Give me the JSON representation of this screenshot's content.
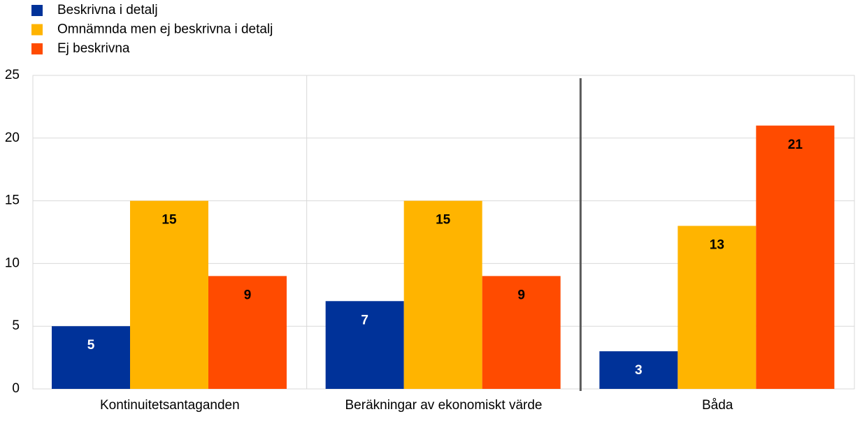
{
  "chart_data": {
    "type": "bar",
    "categories": [
      "Kontinuitetsantaganden",
      "Beräkningar av ekonomiskt värde",
      "Båda"
    ],
    "series": [
      {
        "name": "Beskrivna i detalj",
        "color": "#003299",
        "values": [
          5,
          7,
          3
        ]
      },
      {
        "name": "Omnämnda men ej beskrivna i detalj",
        "color": "#ffb400",
        "values": [
          15,
          15,
          13
        ]
      },
      {
        "name": "Ej beskrivna",
        "color": "#ff4b00",
        "values": [
          9,
          9,
          21
        ]
      }
    ],
    "ylim": [
      0,
      25
    ],
    "yticks": [
      0,
      5,
      10,
      15,
      20,
      25
    ],
    "grid": true,
    "legend": "top-left"
  }
}
